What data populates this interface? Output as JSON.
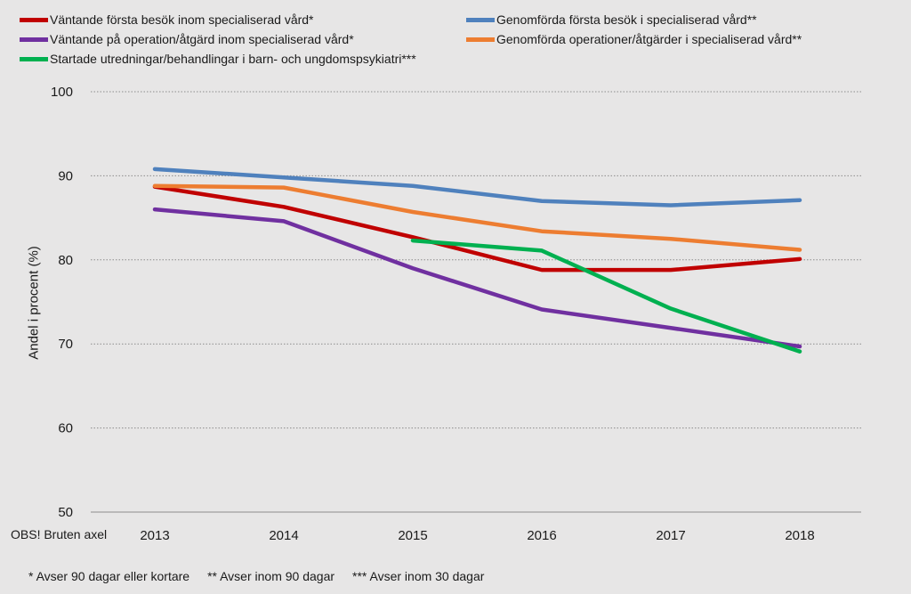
{
  "chart_data": {
    "type": "line",
    "title": "",
    "xlabel": "",
    "ylabel": "Andel i procent (%)",
    "axis_note": "OBS! Bruten axel",
    "categories": [
      "2013",
      "2014",
      "2015",
      "2016",
      "2017",
      "2018"
    ],
    "ylim": [
      50,
      100
    ],
    "yticks": [
      50,
      60,
      70,
      80,
      90,
      100
    ],
    "grid": "horizontal-dotted",
    "series": [
      {
        "name": "Väntande första besök inom specialiserad vård*",
        "color": "#c00000",
        "values": [
          88.7,
          86.3,
          82.7,
          78.8,
          78.8,
          80.1
        ]
      },
      {
        "name": "Genomförda första besök i specialiserad vård**",
        "color": "#4f81bd",
        "values": [
          90.8,
          89.8,
          88.8,
          87.0,
          86.5,
          87.1
        ]
      },
      {
        "name": "Väntande på operation/åtgärd inom specialiserad vård*",
        "color": "#7030a0",
        "values": [
          86.0,
          84.6,
          79.0,
          74.1,
          71.9,
          69.7
        ]
      },
      {
        "name": "Genomförda operationer/åtgärder i specialiserad vård**",
        "color": "#ed7d31",
        "values": [
          88.8,
          88.6,
          85.7,
          83.4,
          82.5,
          81.2
        ]
      },
      {
        "name": "Startade utredningar/behandlingar i barn- och ungdomspsykiatri***",
        "color": "#00b050",
        "values": [
          null,
          null,
          82.3,
          81.1,
          74.2,
          69.1
        ]
      }
    ],
    "footnotes": [
      "* Avser 90 dagar eller kortare",
      "** Avser inom 90 dagar",
      "*** Avser inom 30 dagar"
    ]
  }
}
